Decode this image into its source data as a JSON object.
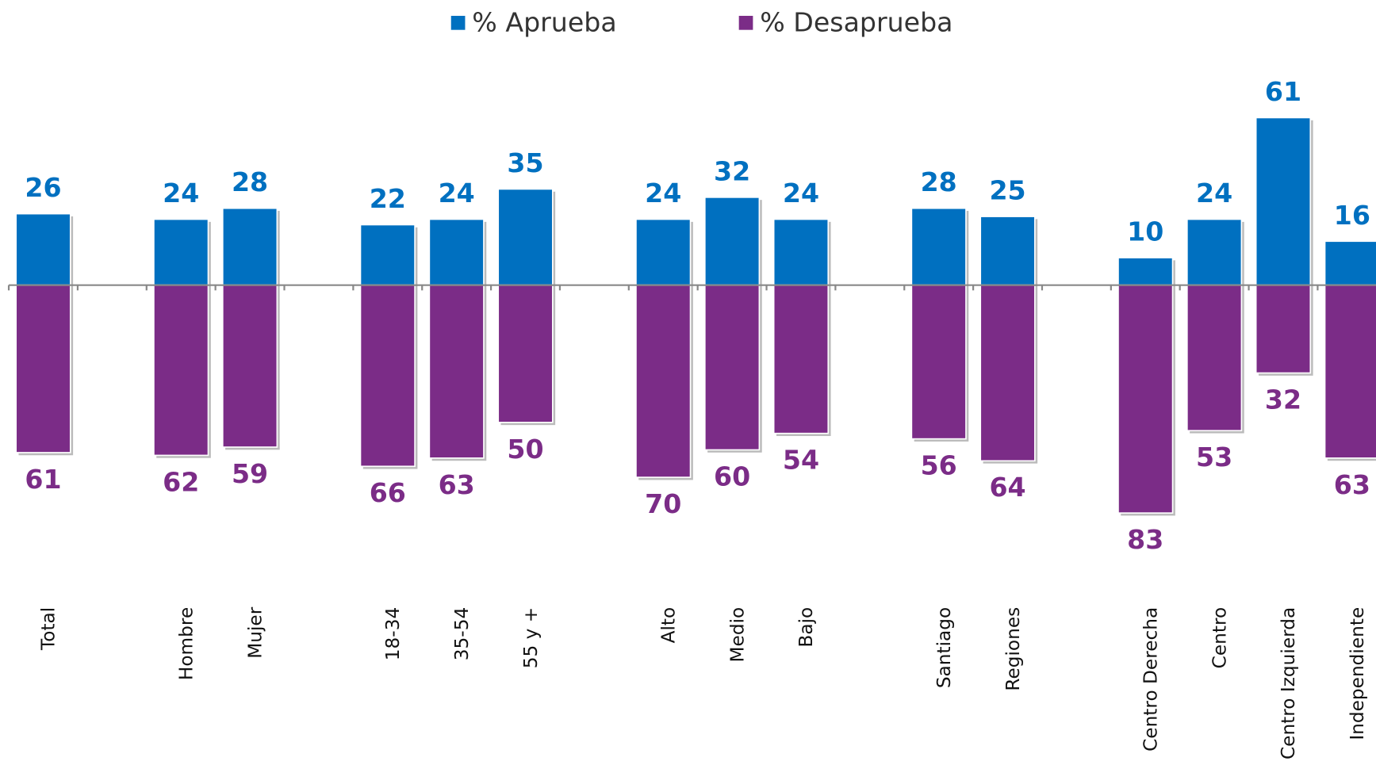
{
  "chart_data": {
    "type": "bar",
    "diverging": true,
    "categories": [
      "Total",
      null,
      "Hombre",
      "Mujer",
      null,
      "18-34",
      "35-54",
      "55 y +",
      null,
      "Alto",
      "Medio",
      "Bajo",
      null,
      "Santiago",
      "Regiones",
      null,
      "Centro Derecha",
      "Centro",
      "Centro Izquierda",
      "Independiente"
    ],
    "series": [
      {
        "name": "% Aprueba",
        "color": "#0070c0",
        "values": [
          26,
          null,
          24,
          28,
          null,
          22,
          24,
          35,
          null,
          24,
          32,
          24,
          null,
          28,
          25,
          null,
          10,
          24,
          61,
          16
        ]
      },
      {
        "name": "% Desaprueba",
        "color": "#7b2c87",
        "values": [
          61,
          null,
          62,
          59,
          null,
          66,
          63,
          50,
          null,
          70,
          60,
          54,
          null,
          56,
          64,
          null,
          83,
          53,
          32,
          63
        ]
      }
    ],
    "legend": "top"
  }
}
